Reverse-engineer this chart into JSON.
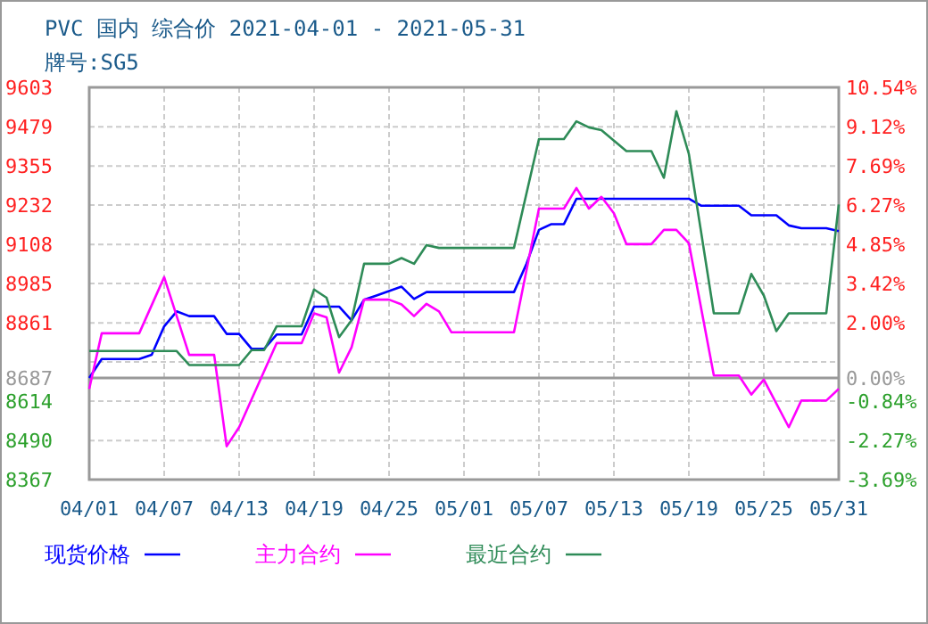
{
  "chart_data": {
    "type": "line",
    "title": "PVC 国内 综合价 2021-04-01 - 2021-05-31",
    "subtitle": "牌号:SG5",
    "xlim": [
      "2021-04-01",
      "2021-05-31"
    ],
    "xticks": [
      {
        "value": "2021-04-01",
        "label": "04/01"
      },
      {
        "value": "2021-04-07",
        "label": "04/07"
      },
      {
        "value": "2021-04-13",
        "label": "04/13"
      },
      {
        "value": "2021-04-19",
        "label": "04/19"
      },
      {
        "value": "2021-04-25",
        "label": "04/25"
      },
      {
        "value": "2021-05-01",
        "label": "05/01"
      },
      {
        "value": "2021-05-07",
        "label": "05/07"
      },
      {
        "value": "2021-05-13",
        "label": "05/13"
      },
      {
        "value": "2021-05-19",
        "label": "05/19"
      },
      {
        "value": "2021-05-25",
        "label": "05/25"
      },
      {
        "value": "2021-05-31",
        "label": "05/31"
      }
    ],
    "ylim": [
      8367,
      9603
    ],
    "yticks": [
      8367,
      8490,
      8614,
      8687,
      {
        "value": 8737.8,
        "label": null
      },
      8861,
      8985,
      9108,
      9232,
      9355,
      9479,
      9603
    ],
    "y2lim": [
      -3.69,
      10.54
    ],
    "y2ticks": [
      {
        "value": -3.69,
        "label": "-3.69%"
      },
      {
        "value": -2.27,
        "label": "-2.27%"
      },
      {
        "value": -0.84,
        "label": "-0.84%"
      },
      {
        "value": 0,
        "label": "0.00%"
      },
      {
        "value": 2.0,
        "label": "2.00%"
      },
      {
        "value": 3.42,
        "label": "3.42%"
      },
      {
        "value": 4.85,
        "label": "4.85%"
      },
      {
        "value": 6.27,
        "label": "6.27%"
      },
      {
        "value": 7.69,
        "label": "7.69%"
      },
      {
        "value": 9.12,
        "label": "9.12%"
      },
      {
        "value": 10.54,
        "label": "10.54%"
      }
    ],
    "ref_lines": [
      {
        "axis": "y2",
        "value": 0,
        "color": "#999999"
      }
    ],
    "grid": true,
    "legend": "bottom",
    "line_style": "solid",
    "series": [
      {
        "name": "现货价格",
        "color": "#0000ff",
        "x": [
          "2021-04-01",
          "2021-04-02",
          "2021-04-05",
          "2021-04-06",
          "2021-04-07",
          "2021-04-08",
          "2021-04-09",
          "2021-04-11",
          "2021-04-12",
          "2021-04-13",
          "2021-04-14",
          "2021-04-15",
          "2021-04-16",
          "2021-04-18",
          "2021-04-19",
          "2021-04-21",
          "2021-04-22",
          "2021-04-23",
          "2021-04-24",
          "2021-04-26",
          "2021-04-27",
          "2021-04-28",
          "2021-05-05",
          "2021-05-06",
          "2021-05-07",
          "2021-05-08",
          "2021-05-09",
          "2021-05-10",
          "2021-05-19",
          "2021-05-20",
          "2021-05-23",
          "2021-05-24",
          "2021-05-26",
          "2021-05-27",
          "2021-05-28",
          "2021-05-30",
          "2021-05-31"
        ],
        "values": [
          8687,
          8747,
          8747,
          8760,
          8850,
          8897,
          8882,
          8882,
          8826,
          8826,
          8779,
          8779,
          8824,
          8824,
          8912,
          8912,
          8869,
          8934,
          8947,
          8975,
          8936,
          8958,
          8958,
          9047,
          9154,
          9172,
          9172,
          9252,
          9252,
          9230,
          9230,
          9200,
          9200,
          9168,
          9159,
          9159,
          9150
        ]
      },
      {
        "name": "主力合约",
        "color": "#ff00ff",
        "x": [
          "2021-04-01",
          "2021-04-02",
          "2021-04-05",
          "2021-04-07",
          "2021-04-09",
          "2021-04-11",
          "2021-04-12",
          "2021-04-13",
          "2021-04-16",
          "2021-04-18",
          "2021-04-19",
          "2021-04-20",
          "2021-04-21",
          "2021-04-22",
          "2021-04-23",
          "2021-04-25",
          "2021-04-26",
          "2021-04-27",
          "2021-04-28",
          "2021-04-29",
          "2021-04-30",
          "2021-05-05",
          "2021-05-07",
          "2021-05-09",
          "2021-05-10",
          "2021-05-11",
          "2021-05-12",
          "2021-05-13",
          "2021-05-14",
          "2021-05-16",
          "2021-05-17",
          "2021-05-18",
          "2021-05-19",
          "2021-05-21",
          "2021-05-23",
          "2021-05-24",
          "2021-05-25",
          "2021-05-27",
          "2021-05-28",
          "2021-05-30",
          "2021-05-31"
        ],
        "values": [
          8653,
          8828,
          8828,
          9005,
          8760,
          8760,
          8472,
          8532,
          8797,
          8797,
          8891,
          8878,
          8704,
          8784,
          8934,
          8934,
          8919,
          8882,
          8921,
          8897,
          8831,
          8831,
          9221,
          9221,
          9286,
          9221,
          9258,
          9206,
          9109,
          9109,
          9154,
          9154,
          9112,
          8695,
          8695,
          8635,
          8682,
          8532,
          8616,
          8616,
          8653
        ]
      },
      {
        "name": "最近合约",
        "color": "#2e8b57",
        "x": [
          "2021-04-01",
          "2021-04-08",
          "2021-04-09",
          "2021-04-13",
          "2021-04-14",
          "2021-04-15",
          "2021-04-16",
          "2021-04-18",
          "2021-04-19",
          "2021-04-20",
          "2021-04-21",
          "2021-04-22",
          "2021-04-23",
          "2021-04-25",
          "2021-04-26",
          "2021-04-27",
          "2021-04-28",
          "2021-04-29",
          "2021-05-05",
          "2021-05-07",
          "2021-05-09",
          "2021-05-10",
          "2021-05-11",
          "2021-05-12",
          "2021-05-14",
          "2021-05-16",
          "2021-05-17",
          "2021-05-18",
          "2021-05-19",
          "2021-05-21",
          "2021-05-23",
          "2021-05-24",
          "2021-05-25",
          "2021-05-26",
          "2021-05-27",
          "2021-05-30",
          "2021-05-31"
        ],
        "values": [
          8772,
          8772,
          8728,
          8728,
          8775,
          8775,
          8850,
          8850,
          8966,
          8940,
          8816,
          8869,
          9047,
          9047,
          9065,
          9047,
          9106,
          9097,
          9097,
          9440,
          9440,
          9496,
          9477,
          9468,
          9402,
          9402,
          9318,
          9528,
          9393,
          8891,
          8891,
          9015,
          8947,
          8835,
          8891,
          8891,
          9234
        ]
      }
    ]
  }
}
